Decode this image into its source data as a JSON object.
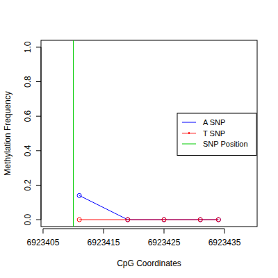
{
  "chart_data": {
    "type": "line",
    "x_label": "CpG Coordinates",
    "y_label": "Methylation Frequency",
    "x": [
      6923411,
      6923419,
      6923425,
      6923431,
      6923434
    ],
    "series": [
      {
        "name": "A SNP",
        "color": "#0000ff",
        "marker": "circle",
        "values": [
          0.14,
          0,
          0,
          0,
          0
        ]
      },
      {
        "name": "T SNP",
        "color": "#ff0000",
        "marker": "circle",
        "values": [
          0,
          0,
          0,
          0,
          0
        ]
      }
    ],
    "snp_position": {
      "name": "SNP Position",
      "color": "#00cc00",
      "x": 6923410
    },
    "xlim": [
      6923404.66,
      6923440.4
    ],
    "xticks": [
      6923405,
      6923415,
      6923425,
      6923435
    ],
    "ylim": [
      -0.04,
      1.04
    ],
    "yticks": [
      {
        "value": 0,
        "label": "0.0"
      },
      0.2,
      0.4,
      0.6,
      0.8,
      {
        "value": 1,
        "label": "1.0"
      }
    ],
    "legend": "right",
    "grid": false
  }
}
